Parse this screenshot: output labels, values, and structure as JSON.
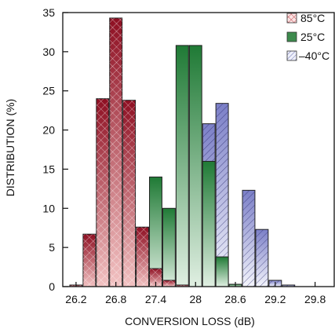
{
  "chart_data": {
    "type": "bar",
    "title": "",
    "xlabel": "CONVERSION LOSS (dB)",
    "ylabel": "DISTRIBUTION (%)",
    "ylim": [
      0,
      35
    ],
    "y_ticks": [
      0,
      5,
      10,
      15,
      20,
      25,
      30,
      35
    ],
    "xlim": [
      26.0,
      30.1
    ],
    "x_ticks": [
      26.2,
      26.8,
      27.4,
      28,
      28.6,
      29.2,
      29.8
    ],
    "x_tick_labels": [
      "26.2",
      "26.8",
      "27.4",
      "28",
      "28.6",
      "29.2",
      "29.8"
    ],
    "bin_width": 0.2,
    "bin_centers": [
      26.2,
      26.4,
      26.6,
      26.8,
      27.0,
      27.2,
      27.4,
      27.6,
      27.8,
      28.0,
      28.2,
      28.4,
      28.6,
      28.8,
      29.0,
      29.2,
      29.4,
      29.6,
      29.8,
      30.0
    ],
    "legend_position": "top-right",
    "grid": false,
    "series": [
      {
        "name": "85°C",
        "style": "crosshatch",
        "color": "#c8323a",
        "values": [
          0.2,
          6.7,
          24.0,
          34.3,
          23.8,
          7.6,
          2.3,
          0.8,
          0.2,
          0,
          0,
          0,
          0,
          0,
          0,
          0,
          0,
          0,
          0,
          0
        ]
      },
      {
        "name": "25°C",
        "style": "solid",
        "color": "#2f7a3f",
        "values": [
          0,
          0,
          0,
          0,
          0,
          3.5,
          14.0,
          10.0,
          30.8,
          30.8,
          16.0,
          3.8,
          0.3,
          0,
          0,
          0,
          0,
          0,
          0,
          0
        ]
      },
      {
        "name": "–40°C",
        "style": "diagonal",
        "color": "#6b6fc0",
        "values": [
          0,
          0,
          0,
          0,
          0,
          0,
          0,
          0,
          0,
          0,
          20.8,
          23.4,
          0,
          12.3,
          7.3,
          0.8,
          0.2,
          0,
          0,
          0
        ]
      }
    ]
  }
}
